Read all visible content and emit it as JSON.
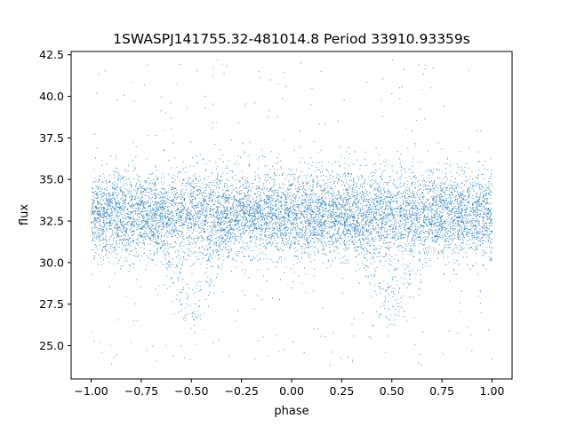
{
  "chart_data": {
    "type": "scatter",
    "title": "1SWASPJ141755.32-481014.8 Period 33910.93359s",
    "xlabel": "phase",
    "ylabel": "flux",
    "xlim": [
      -1.1,
      1.1
    ],
    "ylim": [
      23.0,
      42.7
    ],
    "xticks": [
      -1.0,
      -0.75,
      -0.5,
      -0.25,
      0.0,
      0.25,
      0.5,
      0.75,
      1.0
    ],
    "xtick_labels": [
      "−1.00",
      "−0.75",
      "−0.50",
      "−0.25",
      "0.00",
      "0.25",
      "0.50",
      "0.75",
      "1.00"
    ],
    "yticks": [
      25.0,
      27.5,
      30.0,
      32.5,
      35.0,
      37.5,
      40.0,
      42.5
    ],
    "ytick_labels": [
      "25.0",
      "27.5",
      "30.0",
      "32.5",
      "35.0",
      "37.5",
      "40.0",
      "42.5"
    ],
    "grid": false,
    "point_color": "#1f77b4",
    "series": [
      {
        "x_range": [
          -1.0,
          1.0
        ],
        "baseline_flux": 32.9,
        "band_flux_range": [
          30.5,
          35.2
        ],
        "eclipse_centers_phase": [
          -0.5,
          0.5
        ],
        "eclipse_min_flux": 26.3,
        "outlier_flux_range": [
          23.8,
          42.2
        ]
      }
    ]
  }
}
